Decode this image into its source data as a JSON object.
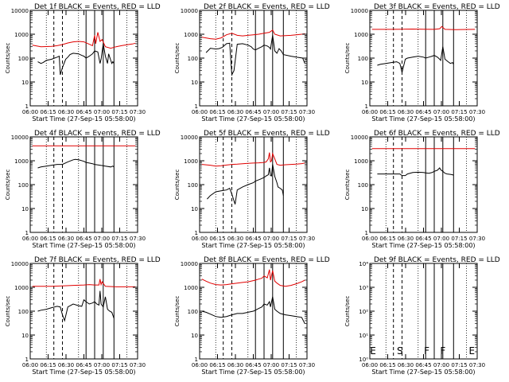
{
  "figure": {
    "xlabel": "Start Time (27-Sep-15 05:58:00)",
    "ylabel": "Counts/sec",
    "x_ticks": [
      "06:00",
      "06:15",
      "06:30",
      "06:45",
      "07:00",
      "07:15",
      "07:30"
    ],
    "y_ticks_log": [
      "1",
      "10",
      "100",
      "1000",
      "10000"
    ],
    "y_ticks_exp": [
      "10⁰",
      "10¹",
      "10²",
      "10³",
      "10⁴"
    ],
    "event_markers": [
      "E",
      "S",
      "F",
      "F",
      "E"
    ],
    "colors": {
      "events": "#000000",
      "lld": "#e00000",
      "axis": "#000000"
    }
  },
  "chart_data": [
    {
      "type": "line",
      "title": "Det 1f BLACK = Events, RED = LLD",
      "xlabel": "Start Time (27-Sep-15 05:58:00)",
      "ylabel": "Counts/sec",
      "x_range_min": [
        360,
        460
      ],
      "ylim": [
        1,
        10000
      ],
      "yscale": "log",
      "flare_times": [
        382,
        390,
        412,
        420,
        428,
        438
      ],
      "grid_times": [
        375,
        405,
        450
      ],
      "series": [
        {
          "name": "Events",
          "x": [
            367,
            370,
            372,
            375,
            380,
            385,
            387,
            388,
            390,
            393,
            395,
            397,
            400,
            405,
            408,
            410,
            412,
            415,
            418,
            420,
            423,
            425,
            426,
            428,
            430,
            432,
            433,
            435,
            436,
            437,
            438
          ],
          "y": [
            70,
            60,
            65,
            80,
            90,
            110,
            120,
            20,
            40,
            90,
            110,
            140,
            160,
            150,
            130,
            120,
            100,
            120,
            150,
            200,
            180,
            60,
            90,
            400,
            120,
            60,
            150,
            80,
            60,
            70,
            60
          ]
        },
        {
          "name": "LLD",
          "x": [
            362,
            370,
            380,
            385,
            390,
            395,
            400,
            405,
            410,
            413,
            418,
            420,
            421,
            423,
            425,
            427,
            430,
            435,
            440,
            445,
            450,
            455,
            458
          ],
          "y": [
            350,
            300,
            310,
            330,
            370,
            430,
            480,
            500,
            480,
            420,
            330,
            900,
            400,
            1200,
            500,
            600,
            300,
            260,
            300,
            330,
            360,
            390,
            420
          ]
        }
      ]
    },
    {
      "type": "line",
      "title": "Det 2f BLACK = Events, RED = LLD",
      "xlabel": "Start Time (27-Sep-15 05:58:00)",
      "ylabel": "Counts/sec",
      "x_range_min": [
        360,
        460
      ],
      "ylim": [
        1,
        10000
      ],
      "yscale": "log",
      "flare_times": [
        382,
        390,
        412,
        420,
        428,
        438
      ],
      "grid_times": [
        375,
        405,
        450
      ],
      "series": [
        {
          "name": "Events",
          "x": [
            366,
            370,
            375,
            378,
            381,
            385,
            388,
            390,
            392,
            395,
            400,
            405,
            408,
            410,
            412,
            415,
            418,
            420,
            423,
            425,
            426,
            428,
            430,
            432,
            434,
            436,
            438,
            445,
            450,
            456,
            458
          ],
          "y": [
            170,
            260,
            240,
            250,
            280,
            400,
            420,
            20,
            30,
            380,
            400,
            350,
            300,
            240,
            220,
            260,
            300,
            350,
            320,
            280,
            240,
            900,
            200,
            160,
            250,
            200,
            140,
            120,
            110,
            100,
            60
          ]
        },
        {
          "name": "LLD",
          "x": [
            362,
            370,
            375,
            380,
            385,
            390,
            395,
            400,
            405,
            410,
            415,
            420,
            425,
            428,
            430,
            435,
            440,
            445,
            450,
            455,
            458
          ],
          "y": [
            750,
            650,
            620,
            700,
            950,
            1100,
            900,
            850,
            900,
            950,
            1000,
            1100,
            1200,
            1500,
            1000,
            850,
            880,
            900,
            950,
            1000,
            1050
          ]
        }
      ]
    },
    {
      "type": "line",
      "title": "Det 3f BLACK = Events, RED = LLD",
      "xlabel": "Start Time (27-Sep-15 05:58:00)",
      "ylabel": "Counts/sec",
      "x_range_min": [
        360,
        460
      ],
      "ylim": [
        1,
        10000
      ],
      "yscale": "log",
      "flare_times": [
        382,
        390,
        412,
        420,
        428,
        438
      ],
      "grid_times": [
        375,
        405,
        450
      ],
      "series": [
        {
          "name": "Events",
          "x": [
            367,
            370,
            375,
            380,
            385,
            388,
            390,
            393,
            395,
            400,
            405,
            410,
            412,
            415,
            418,
            420,
            423,
            425,
            426,
            428,
            430,
            433,
            435,
            437,
            438
          ],
          "y": [
            50,
            55,
            60,
            65,
            70,
            60,
            25,
            90,
            100,
            110,
            120,
            110,
            100,
            110,
            120,
            130,
            110,
            90,
            80,
            300,
            90,
            70,
            60,
            65,
            55
          ]
        },
        {
          "name": "LLD",
          "x": [
            362,
            370,
            380,
            390,
            400,
            410,
            420,
            425,
            427,
            430,
            440,
            450,
            458
          ],
          "y": [
            1600,
            1600,
            1600,
            1620,
            1650,
            1620,
            1600,
            1700,
            2100,
            1600,
            1550,
            1580,
            1600
          ]
        }
      ]
    },
    {
      "type": "line",
      "title": "Det 4f BLACK = Events, RED = LLD",
      "xlabel": "Start Time (27-Sep-15 05:58:00)",
      "ylabel": "Counts/sec",
      "x_range_min": [
        360,
        460
      ],
      "ylim": [
        1,
        10000
      ],
      "yscale": "log",
      "flare_times": [
        382,
        390,
        412,
        420,
        428,
        438
      ],
      "grid_times": [
        375,
        405,
        450
      ],
      "series": [
        {
          "name": "Events",
          "x": [
            367,
            370,
            375,
            380,
            385,
            388,
            390,
            395,
            400,
            402,
            405,
            410,
            412,
            415,
            418,
            420,
            425,
            430,
            435,
            437,
            438
          ],
          "y": [
            500,
            550,
            600,
            650,
            700,
            700,
            700,
            900,
            1100,
            1150,
            1100,
            950,
            850,
            800,
            750,
            700,
            650,
            600,
            550,
            600,
            550
          ]
        },
        {
          "name": "LLD",
          "x": [
            362,
            458
          ],
          "y": [
            4200,
            4200
          ]
        }
      ]
    },
    {
      "type": "line",
      "title": "Det 5f BLACK = Events, RED = LLD",
      "xlabel": "Start Time (27-Sep-15 05:58:00)",
      "ylabel": "Counts/sec",
      "x_range_min": [
        360,
        460
      ],
      "ylim": [
        1,
        10000
      ],
      "yscale": "log",
      "flare_times": [
        382,
        390,
        412,
        420,
        428,
        438
      ],
      "grid_times": [
        375,
        405,
        450
      ],
      "series": [
        {
          "name": "Events",
          "x": [
            367,
            370,
            375,
            380,
            385,
            388,
            390,
            393,
            395,
            400,
            405,
            410,
            412,
            415,
            418,
            420,
            422,
            424,
            425,
            426,
            427,
            428,
            430,
            432,
            433,
            435,
            437,
            438
          ],
          "y": [
            25,
            35,
            50,
            55,
            60,
            70,
            40,
            15,
            60,
            80,
            100,
            120,
            140,
            160,
            180,
            200,
            230,
            260,
            500,
            240,
            230,
            700,
            220,
            120,
            80,
            70,
            60,
            35
          ]
        },
        {
          "name": "LLD",
          "x": [
            362,
            370,
            375,
            380,
            385,
            390,
            395,
            400,
            405,
            410,
            415,
            420,
            422,
            424,
            425,
            426,
            427,
            428,
            430,
            432,
            435,
            440,
            445,
            450,
            455,
            458
          ],
          "y": [
            700,
            650,
            600,
            620,
            660,
            700,
            720,
            750,
            780,
            800,
            820,
            850,
            900,
            1200,
            2200,
            900,
            1000,
            2000,
            1200,
            700,
            650,
            680,
            700,
            720,
            760,
            800
          ]
        }
      ]
    },
    {
      "type": "line",
      "title": "Det 6f BLACK = Events, RED = LLD",
      "xlabel": "Start Time (27-Sep-15 05:58:00)",
      "ylabel": "Counts/sec",
      "x_range_min": [
        360,
        460
      ],
      "ylim": [
        1,
        10000
      ],
      "yscale": "log",
      "flare_times": [
        382,
        390,
        412,
        420,
        428,
        438
      ],
      "grid_times": [
        375,
        405,
        450
      ],
      "series": [
        {
          "name": "Events",
          "x": [
            367,
            370,
            375,
            380,
            385,
            388,
            390,
            393,
            395,
            400,
            405,
            410,
            412,
            415,
            418,
            420,
            423,
            425,
            426,
            428,
            430,
            432,
            435,
            437,
            438
          ],
          "y": [
            280,
            280,
            280,
            280,
            280,
            280,
            240,
            240,
            280,
            320,
            330,
            320,
            310,
            300,
            320,
            360,
            400,
            500,
            420,
            360,
            300,
            280,
            270,
            260,
            250
          ]
        },
        {
          "name": "LLD",
          "x": [
            362,
            458
          ],
          "y": [
            3200,
            3200
          ]
        }
      ]
    },
    {
      "type": "line",
      "title": "Det 7f BLACK = Events, RED = LLD",
      "xlabel": "Start Time (27-Sep-15 05:58:00)",
      "ylabel": "Counts/sec",
      "x_range_min": [
        360,
        460
      ],
      "ylim": [
        1,
        10000
      ],
      "yscale": "log",
      "flare_times": [
        382,
        390,
        412,
        420,
        428,
        438
      ],
      "grid_times": [
        375,
        405,
        450
      ],
      "series": [
        {
          "name": "Events",
          "x": [
            367,
            370,
            375,
            380,
            385,
            388,
            390,
            392,
            395,
            400,
            405,
            408,
            410,
            412,
            415,
            418,
            420,
            422,
            424,
            425,
            426,
            428,
            430,
            432,
            434,
            436,
            438
          ],
          "y": [
            100,
            110,
            120,
            140,
            160,
            150,
            70,
            40,
            150,
            200,
            170,
            160,
            300,
            250,
            200,
            220,
            250,
            200,
            180,
            700,
            200,
            150,
            400,
            120,
            100,
            90,
            50
          ]
        },
        {
          "name": "LLD",
          "x": [
            362,
            370,
            380,
            390,
            400,
            410,
            415,
            420,
            424,
            425,
            426,
            427,
            430,
            440,
            450,
            458
          ],
          "y": [
            1100,
            1100,
            1100,
            1150,
            1200,
            1250,
            1300,
            1250,
            1250,
            2200,
            1300,
            1700,
            1100,
            1050,
            1050,
            1050
          ]
        }
      ]
    },
    {
      "type": "line",
      "title": "Det 8f BLACK = Events, RED = LLD",
      "xlabel": "Start Time (27-Sep-15 05:58:00)",
      "ylabel": "Counts/sec",
      "x_range_min": [
        360,
        460
      ],
      "ylim": [
        1,
        10000
      ],
      "yscale": "log",
      "flare_times": [
        382,
        390,
        412,
        420,
        428,
        438
      ],
      "grid_times": [
        375,
        405,
        450
      ],
      "series": [
        {
          "name": "Events",
          "x": [
            362,
            366,
            370,
            375,
            380,
            385,
            390,
            395,
            400,
            405,
            410,
            412,
            415,
            418,
            420,
            423,
            425,
            426,
            428,
            430,
            432,
            435,
            440,
            445,
            450,
            455,
            458
          ],
          "y": [
            100,
            90,
            75,
            60,
            55,
            60,
            70,
            80,
            80,
            90,
            100,
            110,
            130,
            150,
            200,
            180,
            250,
            150,
            400,
            120,
            100,
            80,
            70,
            65,
            60,
            55,
            30
          ]
        },
        {
          "name": "LLD",
          "x": [
            362,
            366,
            370,
            375,
            380,
            385,
            390,
            395,
            400,
            405,
            410,
            412,
            415,
            418,
            420,
            423,
            425,
            426,
            428,
            430,
            432,
            435,
            440,
            445,
            450,
            455,
            458
          ],
          "y": [
            2200,
            1800,
            1500,
            1300,
            1250,
            1300,
            1400,
            1500,
            1600,
            1700,
            1900,
            2000,
            2200,
            2400,
            3000,
            2500,
            5500,
            2000,
            5000,
            1800,
            1500,
            1200,
            1100,
            1200,
            1400,
            1700,
            2000
          ]
        }
      ]
    },
    {
      "type": "line",
      "title": "Det 9f BLACK = Events, RED = LLD",
      "xlabel": "Start Time (27-Sep-15 05:58:00)",
      "ylabel": "Counts/sec",
      "x_range_min": [
        360,
        460
      ],
      "ylim": [
        1,
        10000
      ],
      "yscale": "log",
      "flare_times": [
        382,
        390,
        412,
        420,
        428,
        438
      ],
      "grid_times": [
        375,
        405,
        450
      ],
      "series": []
    }
  ]
}
